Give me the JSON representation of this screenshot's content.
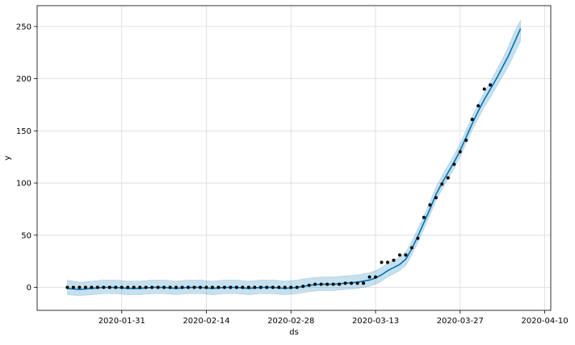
{
  "chart_data": {
    "type": "line",
    "xlabel": "ds",
    "ylabel": "y",
    "x_axis_type": "date",
    "xlim": [
      "2020-01-17",
      "2020-04-11"
    ],
    "ylim": [
      -22,
      270
    ],
    "grid": true,
    "x_ticks": [
      "2020-01-31",
      "2020-02-14",
      "2020-02-28",
      "2020-03-13",
      "2020-03-27",
      "2020-04-10"
    ],
    "y_ticks": [
      0,
      50,
      100,
      150,
      200,
      250
    ],
    "colors": {
      "forecast_line": "#0072b2",
      "uncertainty_band": "#0072b2",
      "observed_points": "#000000",
      "grid": "#d9d9d9"
    },
    "series": [
      {
        "type": "scatter",
        "points": [
          [
            "2020-01-22",
            0
          ],
          [
            "2020-01-23",
            0
          ],
          [
            "2020-01-24",
            0
          ],
          [
            "2020-01-25",
            0
          ],
          [
            "2020-01-26",
            0
          ],
          [
            "2020-01-27",
            0
          ],
          [
            "2020-01-28",
            0
          ],
          [
            "2020-01-29",
            0
          ],
          [
            "2020-01-30",
            0
          ],
          [
            "2020-01-31",
            0
          ],
          [
            "2020-02-01",
            0
          ],
          [
            "2020-02-02",
            0
          ],
          [
            "2020-02-03",
            0
          ],
          [
            "2020-02-04",
            0
          ],
          [
            "2020-02-05",
            0
          ],
          [
            "2020-02-06",
            0
          ],
          [
            "2020-02-07",
            0
          ],
          [
            "2020-02-08",
            0
          ],
          [
            "2020-02-09",
            0
          ],
          [
            "2020-02-10",
            0
          ],
          [
            "2020-02-11",
            0
          ],
          [
            "2020-02-12",
            0
          ],
          [
            "2020-02-13",
            0
          ],
          [
            "2020-02-14",
            0
          ],
          [
            "2020-02-15",
            0
          ],
          [
            "2020-02-16",
            0
          ],
          [
            "2020-02-17",
            0
          ],
          [
            "2020-02-18",
            0
          ],
          [
            "2020-02-19",
            0
          ],
          [
            "2020-02-20",
            0
          ],
          [
            "2020-02-21",
            0
          ],
          [
            "2020-02-22",
            0
          ],
          [
            "2020-02-23",
            0
          ],
          [
            "2020-02-24",
            0
          ],
          [
            "2020-02-25",
            0
          ],
          [
            "2020-02-26",
            0
          ],
          [
            "2020-02-27",
            0
          ],
          [
            "2020-02-28",
            0
          ],
          [
            "2020-02-29",
            0
          ],
          [
            "2020-03-01",
            1
          ],
          [
            "2020-03-02",
            2
          ],
          [
            "2020-03-03",
            3
          ],
          [
            "2020-03-04",
            3
          ],
          [
            "2020-03-05",
            3
          ],
          [
            "2020-03-06",
            3
          ],
          [
            "2020-03-07",
            3
          ],
          [
            "2020-03-08",
            4
          ],
          [
            "2020-03-09",
            4
          ],
          [
            "2020-03-10",
            4
          ],
          [
            "2020-03-11",
            4
          ],
          [
            "2020-03-12",
            10
          ],
          [
            "2020-03-13",
            10
          ],
          [
            "2020-03-14",
            24
          ],
          [
            "2020-03-15",
            24
          ],
          [
            "2020-03-16",
            26
          ],
          [
            "2020-03-17",
            31
          ],
          [
            "2020-03-18",
            31
          ],
          [
            "2020-03-19",
            38
          ],
          [
            "2020-03-20",
            47
          ],
          [
            "2020-03-21",
            67
          ],
          [
            "2020-03-22",
            79
          ],
          [
            "2020-03-23",
            86
          ],
          [
            "2020-03-24",
            99
          ],
          [
            "2020-03-25",
            105
          ],
          [
            "2020-03-26",
            118
          ],
          [
            "2020-03-27",
            130
          ],
          [
            "2020-03-28",
            141
          ],
          [
            "2020-03-29",
            161
          ],
          [
            "2020-03-30",
            174
          ],
          [
            "2020-03-31",
            190
          ],
          [
            "2020-04-01",
            194
          ]
        ]
      },
      {
        "type": "line",
        "points": [
          [
            "2020-01-22",
            -1
          ],
          [
            "2020-01-24",
            -2
          ],
          [
            "2020-01-26",
            -1
          ],
          [
            "2020-01-28",
            0
          ],
          [
            "2020-01-30",
            0
          ],
          [
            "2020-02-01",
            -1
          ],
          [
            "2020-02-03",
            -1
          ],
          [
            "2020-02-05",
            0
          ],
          [
            "2020-02-07",
            0
          ],
          [
            "2020-02-09",
            -1
          ],
          [
            "2020-02-11",
            0
          ],
          [
            "2020-02-13",
            0
          ],
          [
            "2020-02-15",
            -1
          ],
          [
            "2020-02-17",
            0
          ],
          [
            "2020-02-19",
            0
          ],
          [
            "2020-02-21",
            -1
          ],
          [
            "2020-02-23",
            0
          ],
          [
            "2020-02-25",
            0
          ],
          [
            "2020-02-27",
            -1
          ],
          [
            "2020-02-29",
            0
          ],
          [
            "2020-03-02",
            2
          ],
          [
            "2020-03-04",
            3
          ],
          [
            "2020-03-06",
            3
          ],
          [
            "2020-03-08",
            4
          ],
          [
            "2020-03-10",
            5
          ],
          [
            "2020-03-12",
            7
          ],
          [
            "2020-03-13",
            9
          ],
          [
            "2020-03-14",
            12
          ],
          [
            "2020-03-15",
            16
          ],
          [
            "2020-03-16",
            19
          ],
          [
            "2020-03-17",
            22
          ],
          [
            "2020-03-18",
            27
          ],
          [
            "2020-03-19",
            37
          ],
          [
            "2020-03-20",
            49
          ],
          [
            "2020-03-21",
            62
          ],
          [
            "2020-03-22",
            75
          ],
          [
            "2020-03-23",
            89
          ],
          [
            "2020-03-24",
            100
          ],
          [
            "2020-03-25",
            110
          ],
          [
            "2020-03-26",
            120
          ],
          [
            "2020-03-27",
            131
          ],
          [
            "2020-03-28",
            144
          ],
          [
            "2020-03-29",
            157
          ],
          [
            "2020-03-30",
            169
          ],
          [
            "2020-03-31",
            180
          ],
          [
            "2020-04-01",
            190
          ],
          [
            "2020-04-02",
            200
          ],
          [
            "2020-04-03",
            211
          ],
          [
            "2020-04-04",
            222
          ],
          [
            "2020-04-05",
            235
          ],
          [
            "2020-04-06",
            248
          ]
        ]
      },
      {
        "type": "band",
        "points": [
          [
            "2020-01-22",
            -7,
            7
          ],
          [
            "2020-01-24",
            -8,
            5
          ],
          [
            "2020-01-26",
            -7,
            6
          ],
          [
            "2020-01-28",
            -6,
            7
          ],
          [
            "2020-01-30",
            -6,
            7
          ],
          [
            "2020-02-01",
            -7,
            6
          ],
          [
            "2020-02-03",
            -7,
            6
          ],
          [
            "2020-02-05",
            -6,
            7
          ],
          [
            "2020-02-07",
            -6,
            7
          ],
          [
            "2020-02-09",
            -7,
            6
          ],
          [
            "2020-02-11",
            -6,
            7
          ],
          [
            "2020-02-13",
            -6,
            7
          ],
          [
            "2020-02-15",
            -7,
            6
          ],
          [
            "2020-02-17",
            -6,
            7
          ],
          [
            "2020-02-19",
            -6,
            7
          ],
          [
            "2020-02-21",
            -7,
            6
          ],
          [
            "2020-02-23",
            -6,
            7
          ],
          [
            "2020-02-25",
            -6,
            7
          ],
          [
            "2020-02-27",
            -7,
            6
          ],
          [
            "2020-02-29",
            -6,
            7
          ],
          [
            "2020-03-02",
            -4,
            9
          ],
          [
            "2020-03-04",
            -3,
            10
          ],
          [
            "2020-03-06",
            -3,
            10
          ],
          [
            "2020-03-08",
            -2,
            11
          ],
          [
            "2020-03-10",
            -1,
            12
          ],
          [
            "2020-03-12",
            1,
            14
          ],
          [
            "2020-03-13",
            3,
            16
          ],
          [
            "2020-03-14",
            6,
            19
          ],
          [
            "2020-03-15",
            10,
            23
          ],
          [
            "2020-03-16",
            13,
            26
          ],
          [
            "2020-03-17",
            16,
            29
          ],
          [
            "2020-03-18",
            21,
            34
          ],
          [
            "2020-03-19",
            31,
            44
          ],
          [
            "2020-03-20",
            43,
            56
          ],
          [
            "2020-03-21",
            56,
            69
          ],
          [
            "2020-03-22",
            69,
            82
          ],
          [
            "2020-03-23",
            83,
            96
          ],
          [
            "2020-03-24",
            94,
            107
          ],
          [
            "2020-03-25",
            104,
            117
          ],
          [
            "2020-03-26",
            114,
            127
          ],
          [
            "2020-03-27",
            125,
            138
          ],
          [
            "2020-03-28",
            138,
            151
          ],
          [
            "2020-03-29",
            151,
            164
          ],
          [
            "2020-03-30",
            162,
            176
          ],
          [
            "2020-03-31",
            173,
            187
          ],
          [
            "2020-04-01",
            182,
            197
          ],
          [
            "2020-04-02",
            192,
            208
          ],
          [
            "2020-04-03",
            202,
            219
          ],
          [
            "2020-04-04",
            212,
            231
          ],
          [
            "2020-04-05",
            224,
            245
          ],
          [
            "2020-04-06",
            236,
            256
          ]
        ]
      }
    ]
  }
}
